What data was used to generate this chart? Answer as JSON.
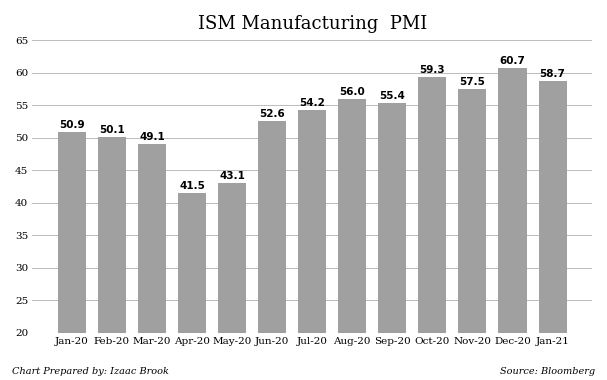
{
  "title": "ISM Manufacturing  PMI",
  "categories": [
    "Jan-20",
    "Feb-20",
    "Mar-20",
    "Apr-20",
    "May-20",
    "Jun-20",
    "Jul-20",
    "Aug-20",
    "Sep-20",
    "Oct-20",
    "Nov-20",
    "Dec-20",
    "Jan-21"
  ],
  "values": [
    50.9,
    50.1,
    49.1,
    41.5,
    43.1,
    52.6,
    54.2,
    56.0,
    55.4,
    59.3,
    57.5,
    60.7,
    58.7
  ],
  "bar_color": "#a0a0a0",
  "ylim": [
    20,
    65
  ],
  "yticks": [
    20,
    25,
    30,
    35,
    40,
    45,
    50,
    55,
    60,
    65
  ],
  "title_fontsize": 13,
  "label_fontsize": 7.5,
  "tick_fontsize": 7.5,
  "footer_left": "Chart Prepared by: Izaac Brook",
  "footer_right": "Source: Bloomberg",
  "background_color": "#ffffff",
  "grid_color": "#bbbbbb"
}
